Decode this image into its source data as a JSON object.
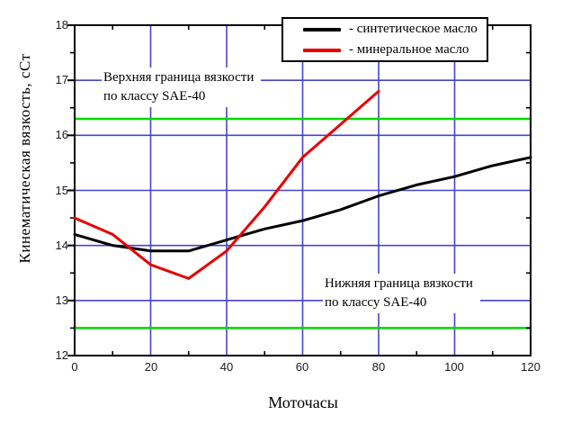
{
  "figure": {
    "y_axis_title": "Кинематическая вязкость, сСт",
    "x_axis_title": "Моточасы",
    "y_ticks": [
      "18",
      "17",
      "16",
      "15",
      "14",
      "13",
      "12"
    ],
    "x_ticks": [
      "0",
      "20",
      "40",
      "60",
      "80",
      "100",
      "120"
    ],
    "annotations": {
      "upper_line1": "Верхняя граница вязкости",
      "upper_line2": "по классу SAE-40",
      "lower_line1": "Нижняя граница вязкости",
      "lower_line2": "по классу SAE-40"
    },
    "legend": [
      {
        "label": "- синтетическое масло",
        "color": "#000000"
      },
      {
        "label": "- минеральное масло",
        "color": "#e80000"
      }
    ]
  },
  "chart_data": {
    "type": "line",
    "title": "",
    "xlabel": "Моточасы",
    "ylabel": "Кинематическая вязкость, сСт",
    "xlim": [
      0,
      120
    ],
    "ylim": [
      12,
      18
    ],
    "x_major_ticks": [
      0,
      20,
      40,
      60,
      80,
      100,
      120
    ],
    "y_major_ticks": [
      12,
      13,
      14,
      15,
      16,
      17,
      18
    ],
    "grid": true,
    "grid_color": "#4444cc",
    "axis_color": "#000000",
    "legend_position": "top-center",
    "series": [
      {
        "name": "синтетическое масло",
        "color": "#000000",
        "width": 3,
        "x": [
          0,
          10,
          20,
          30,
          40,
          50,
          60,
          70,
          80,
          90,
          100,
          110,
          120
        ],
        "y": [
          14.2,
          14.0,
          13.9,
          13.9,
          14.1,
          14.3,
          14.45,
          14.65,
          14.9,
          15.1,
          15.25,
          15.45,
          15.6
        ]
      },
      {
        "name": "минеральное масло",
        "color": "#e80000",
        "width": 3,
        "x": [
          0,
          10,
          20,
          30,
          40,
          50,
          60,
          70,
          80
        ],
        "y": [
          14.5,
          14.2,
          13.65,
          13.4,
          13.9,
          14.7,
          15.6,
          16.2,
          16.8
        ]
      }
    ],
    "reference_lines": [
      {
        "label": "Верхняя граница вязкости по классу SAE-40",
        "y": 16.3,
        "color": "#00d800"
      },
      {
        "label": "Нижняя граница вязкости по классу SAE-40",
        "y": 12.5,
        "color": "#00d800"
      }
    ]
  }
}
